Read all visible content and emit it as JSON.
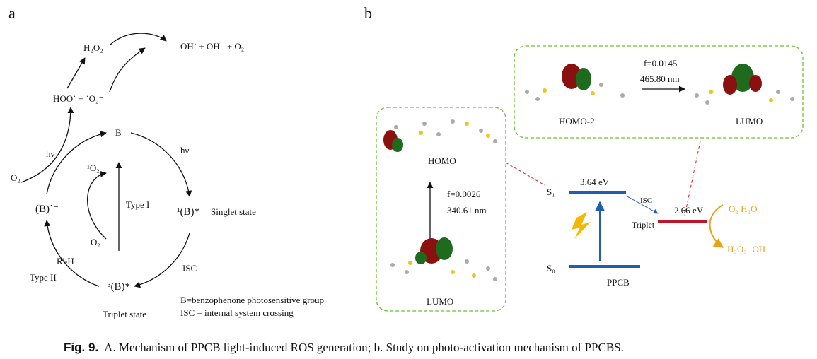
{
  "panel_a": {
    "label": "a",
    "h2o2": "H₂O₂",
    "products": "OH˙ + OH⁻ + O₂",
    "radicals": "HOO˙  +  ˙O₂⁻",
    "b": "B",
    "hv_left": "hν",
    "hv_right": "hν",
    "singlet_oxygen": "¹O₂",
    "o2_left": "O₂",
    "b_radical": "(B)˙⁻",
    "type1": "Type I",
    "singlet_b": "¹(B)*",
    "singlet_state": "Singlet state",
    "o2_center": "O₂",
    "rh": "R'-H",
    "type2": "Type II",
    "isc": "ISC",
    "triplet_b": "³(B)*",
    "triplet_state": "Triplet state",
    "legend_b": "B=benzophenone photosensitive group",
    "legend_isc": "ISC = internal system crossing"
  },
  "panel_b": {
    "label": "b",
    "homo": "HOMO",
    "f1": "f=0.0026",
    "wl1": "340.61 nm",
    "lumo1": "LUMO",
    "f2": "f=0.0145",
    "wl2": "465.80 nm",
    "homo2": "HOMO-2",
    "lumo2": "LUMO",
    "s1": "S₁",
    "s0": "S₀",
    "e_s1": "3.64 eV",
    "isc": "ISC",
    "e_t": "2.66 eV",
    "triplet": "Triplet",
    "ppcb": "PPCB",
    "ros_top": "O₂  H₂O",
    "ros_bottom": "H₂O₂  ·OH"
  },
  "caption": {
    "label": "Fig. 9.",
    "text": "A. Mechanism of PPCB light-induced ROS generation; b. Study on photo-activation mechanism of PPCBS."
  }
}
